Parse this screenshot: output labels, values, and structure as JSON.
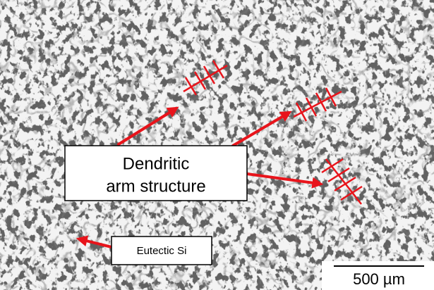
{
  "annotations": {
    "dendritic_label": [
      "Dendritic",
      "arm structure"
    ],
    "eutectic_label": "Eutectic Si",
    "scale_bar": "500 µm"
  }
}
